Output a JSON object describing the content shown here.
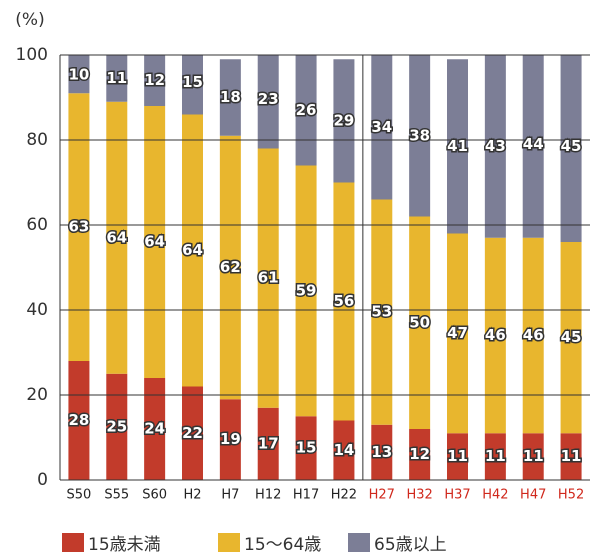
{
  "chart_data": {
    "type": "stacked_bar",
    "y_unit": "(%)",
    "categories": [
      "S50",
      "S55",
      "S60",
      "H2",
      "H7",
      "H12",
      "H17",
      "H22",
      "H27",
      "H32",
      "H37",
      "H42",
      "H47",
      "H52"
    ],
    "category_colors": [
      "#222",
      "#222",
      "#222",
      "#222",
      "#222",
      "#222",
      "#222",
      "#222",
      "#d0281c",
      "#d0281c",
      "#d0281c",
      "#d0281c",
      "#d0281c",
      "#d0281c"
    ],
    "series": [
      {
        "name": "15歳未満",
        "color": "#c23b2b",
        "values": [
          28,
          25,
          24,
          22,
          19,
          17,
          15,
          14,
          13,
          12,
          11,
          11,
          11,
          11
        ]
      },
      {
        "name": "15〜64歳",
        "color": "#e8b62e",
        "values": [
          63,
          64,
          64,
          64,
          62,
          61,
          59,
          56,
          53,
          50,
          47,
          46,
          46,
          45
        ]
      },
      {
        "name": "65歳以上",
        "color": "#7c7e96",
        "values": [
          10,
          11,
          12,
          15,
          18,
          23,
          26,
          29,
          34,
          38,
          41,
          43,
          44,
          45
        ]
      }
    ],
    "ylim": [
      0,
      100
    ],
    "yticks": [
      0,
      20,
      40,
      60,
      80,
      100
    ],
    "grid": true
  }
}
